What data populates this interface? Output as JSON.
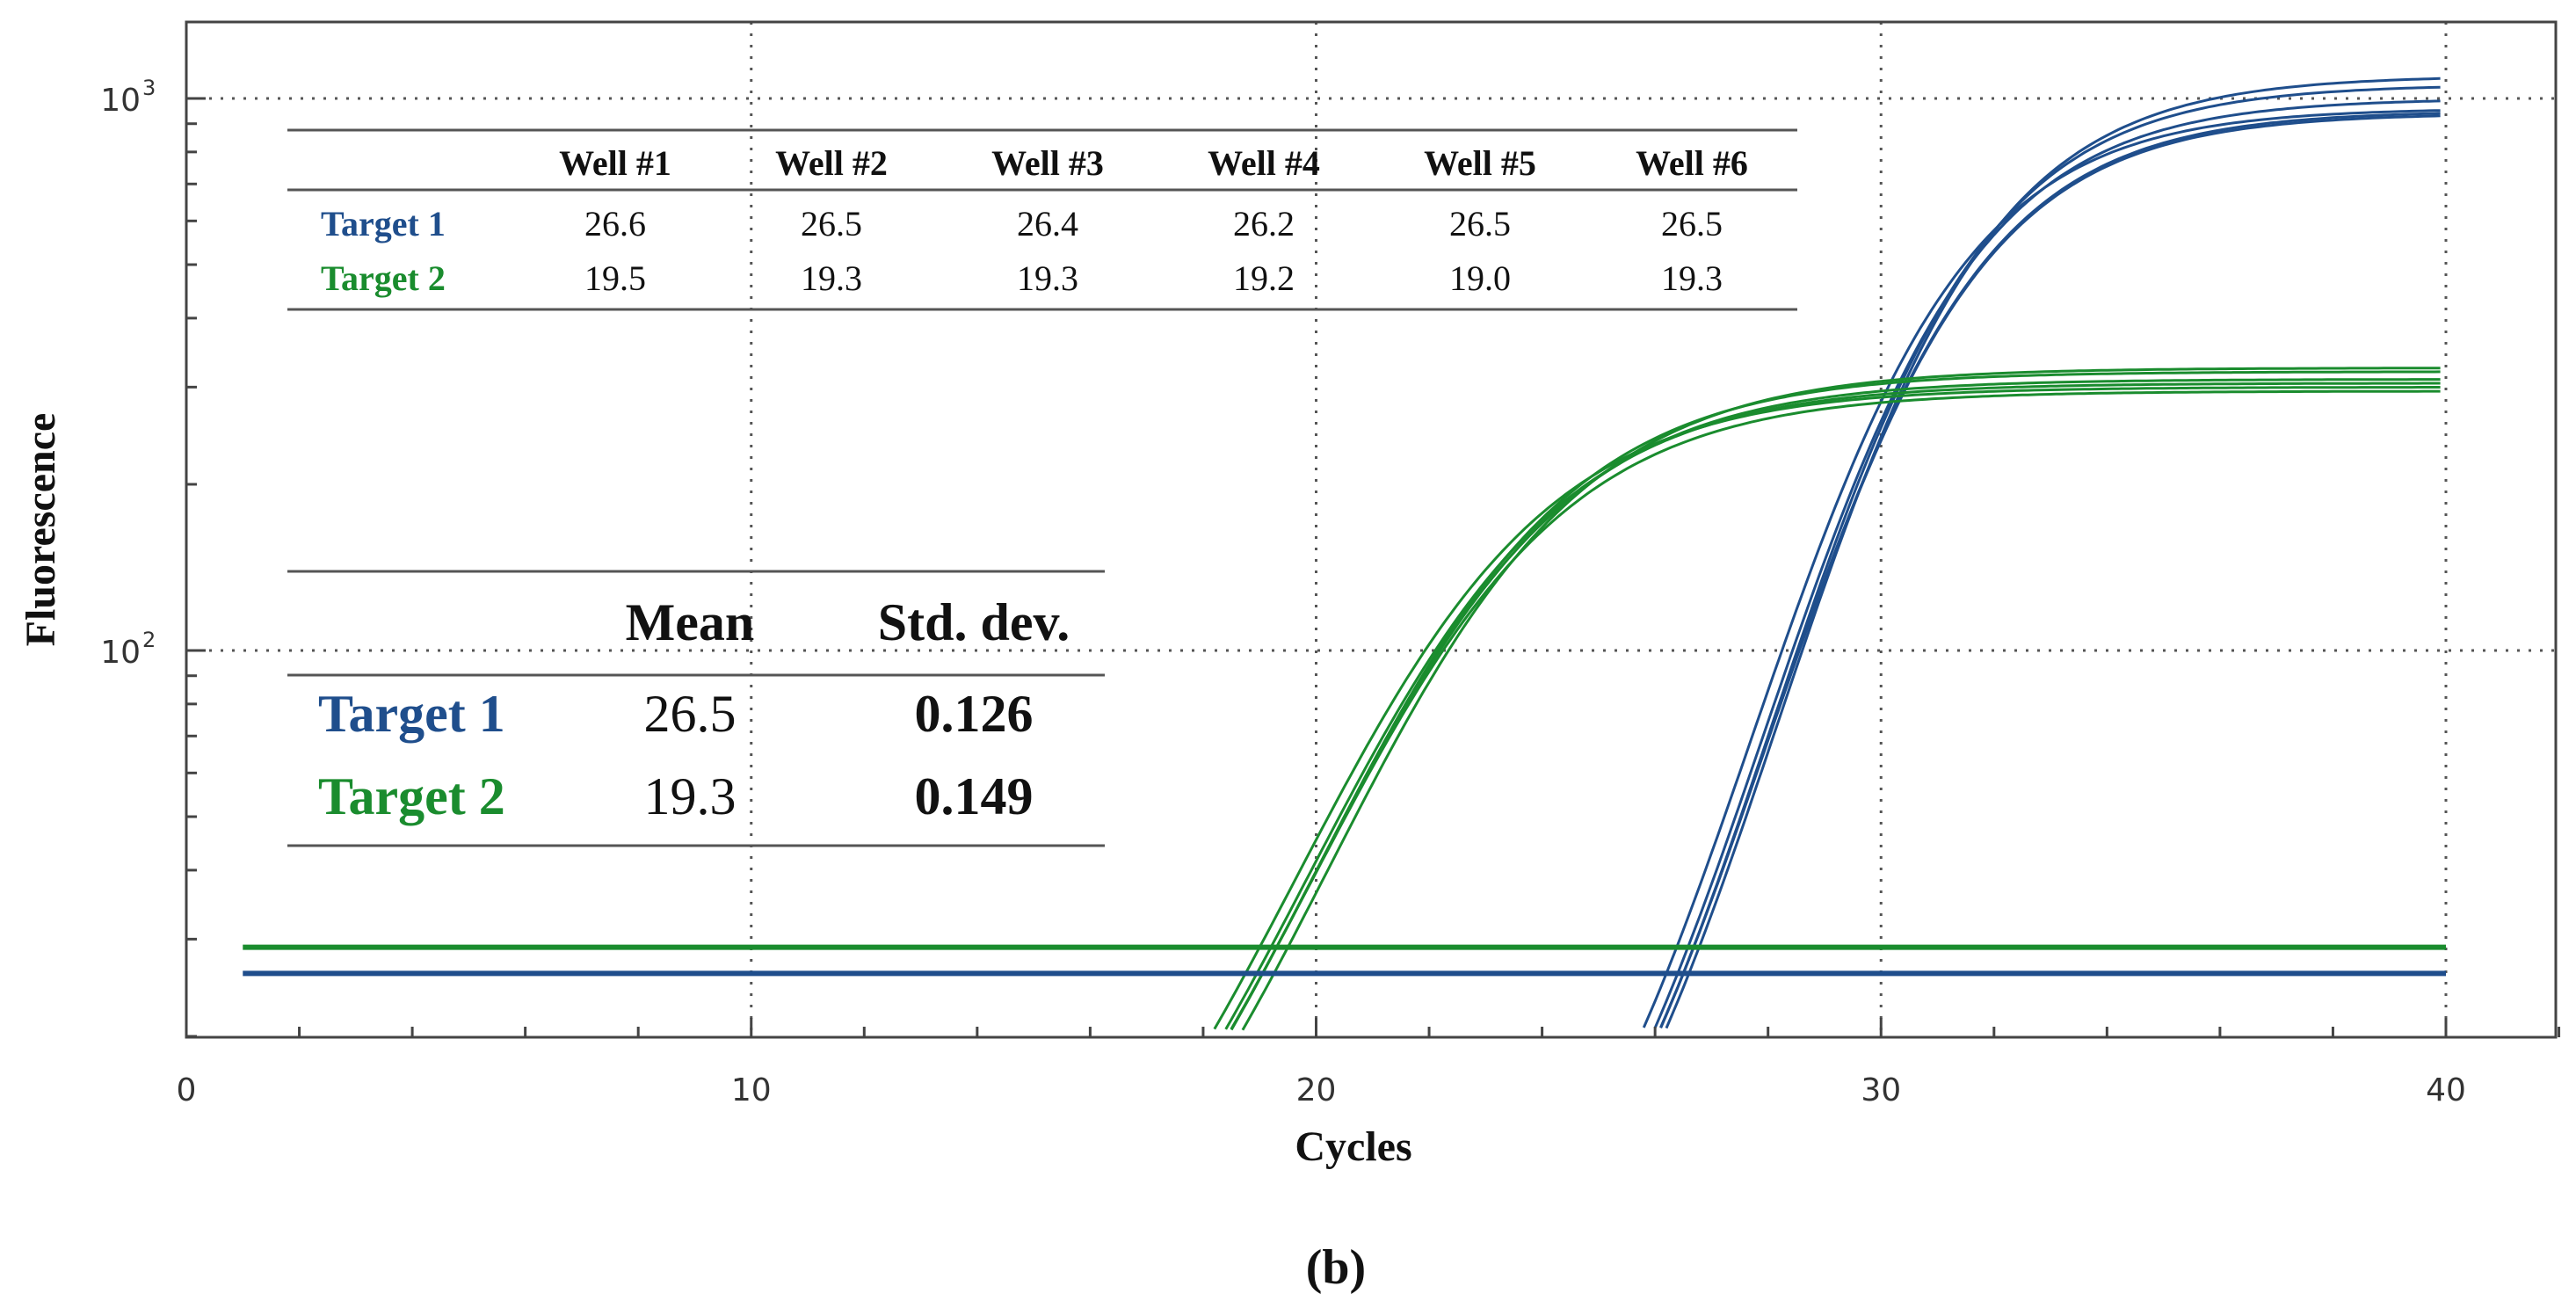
{
  "chart_data": {
    "type": "line",
    "xlabel": "Cycles",
    "ylabel": "Fluorescence",
    "caption": "(b)",
    "xlim": [
      0,
      42
    ],
    "x_ticks": [
      "0",
      "10",
      "20",
      "30",
      "40"
    ],
    "y_scale": "log",
    "ylim": [
      20,
      1200
    ],
    "y_ticks": [
      {
        "base": "10",
        "exp": "2"
      },
      {
        "base": "10",
        "exp": "3"
      }
    ],
    "grid": "dotted",
    "colors": {
      "target1": "#1f4e8c",
      "target2": "#1a8c2e",
      "axis": "#444444"
    },
    "thresholds": [
      {
        "series": "Target 1",
        "y": 26
      },
      {
        "series": "Target 2",
        "y": 29
      }
    ],
    "series": [
      {
        "name": "Target 1",
        "color": "#1f4e8c",
        "cts": [
          26.6,
          26.5,
          26.4,
          26.2,
          26.5,
          26.5
        ],
        "plateaus": [
          1100,
          1060,
          1000,
          960,
          950,
          940
        ]
      },
      {
        "name": "Target 2",
        "color": "#1a8c2e",
        "cts": [
          19.5,
          19.3,
          19.3,
          19.2,
          19.0,
          19.3
        ],
        "plateaus": [
          325,
          320,
          310,
          305,
          300,
          295
        ]
      }
    ],
    "well_table": {
      "headers": [
        "",
        "Well #1",
        "Well #2",
        "Well #3",
        "Well #4",
        "Well #5",
        "Well #6"
      ],
      "rows": [
        {
          "label": "Target 1",
          "values": [
            "26.6",
            "26.5",
            "26.4",
            "26.2",
            "26.5",
            "26.5"
          ]
        },
        {
          "label": "Target 2",
          "values": [
            "19.5",
            "19.3",
            "19.3",
            "19.2",
            "19.0",
            "19.3"
          ]
        }
      ]
    },
    "stats_table": {
      "headers": [
        "",
        "Mean",
        "Std. dev."
      ],
      "rows": [
        {
          "label": "Target 1",
          "mean": "26.5",
          "std": "0.126"
        },
        {
          "label": "Target 2",
          "mean": "19.3",
          "std": "0.149"
        }
      ]
    }
  }
}
